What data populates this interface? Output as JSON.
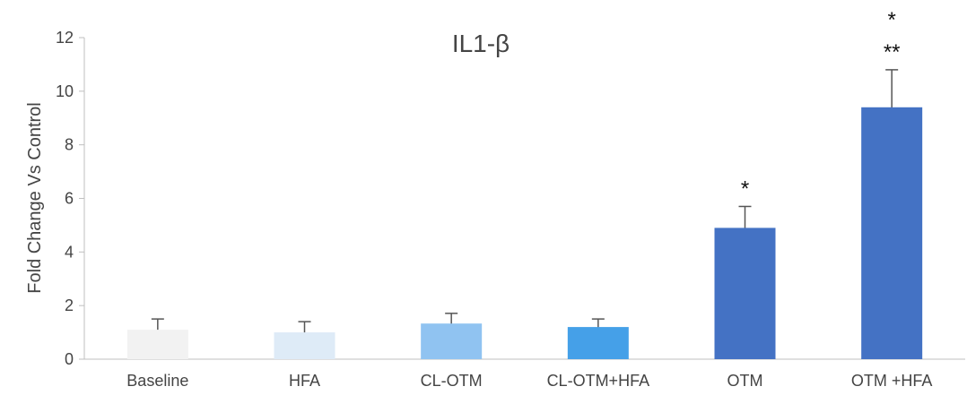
{
  "chart_data": {
    "type": "bar",
    "title": "IL1-β",
    "xlabel": "",
    "ylabel": "Fold Change Vs Control",
    "ylim": [
      0,
      12
    ],
    "yticks": [
      0,
      2,
      4,
      6,
      8,
      10,
      12
    ],
    "grid": false,
    "categories": [
      "Baseline",
      "HFA",
      "CL-OTM",
      "CL-OTM+HFA",
      "OTM",
      "OTM +HFA"
    ],
    "values": [
      1.1,
      1.0,
      1.33,
      1.2,
      4.9,
      9.4
    ],
    "errors": [
      0.4,
      0.4,
      0.38,
      0.3,
      0.8,
      1.4
    ],
    "colors": [
      "#f2f2f2",
      "#deebf7",
      "#90c3f1",
      "#45a0e8",
      "#4472c4",
      "#4472c4"
    ],
    "error_bar_color": "#555555",
    "annotations": [
      [
        "",
        "",
        "",
        "",
        "*",
        "**"
      ],
      [
        "",
        "",
        "",
        "",
        "",
        "*"
      ]
    ]
  }
}
